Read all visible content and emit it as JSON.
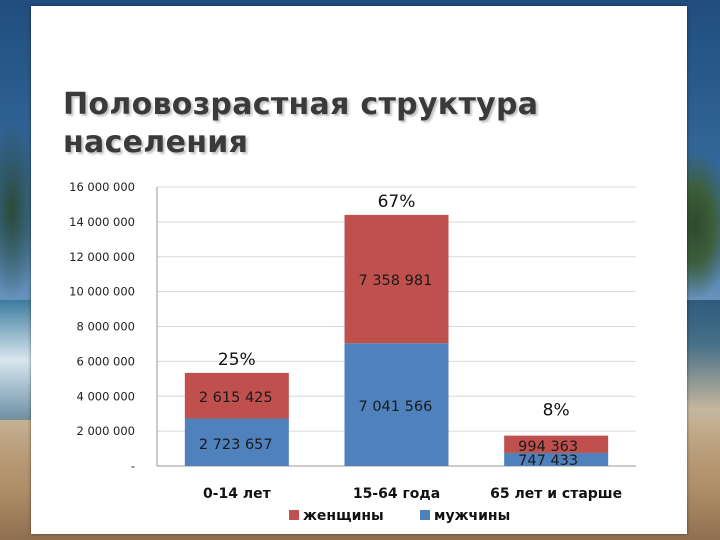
{
  "title": "Половозрастная структура населения",
  "chart_data": {
    "type": "bar",
    "stacked": true,
    "categories": [
      "0-14 лет",
      "15-64 года",
      "65 лет и старше"
    ],
    "series": [
      {
        "name": "мужчины",
        "values": [
          2723657,
          7041566,
          747433
        ],
        "labels": [
          "2 723 657",
          "7 041 566",
          "747 433"
        ],
        "color": "#4f81bd"
      },
      {
        "name": "женщины",
        "values": [
          2615425,
          7358981,
          994363
        ],
        "labels": [
          "2 615 425",
          "7 358 981",
          "994 363"
        ],
        "color": "#c0504d"
      }
    ],
    "percent_labels": [
      "25%",
      "67%",
      "8%"
    ],
    "ylim": [
      0,
      16000000
    ],
    "yticks": [
      {
        "value": 0,
        "label": "-"
      },
      {
        "value": 2000000,
        "label": "2 000 000"
      },
      {
        "value": 4000000,
        "label": "4 000 000"
      },
      {
        "value": 6000000,
        "label": "6 000 000"
      },
      {
        "value": 8000000,
        "label": "8 000 000"
      },
      {
        "value": 10000000,
        "label": "10 000 000"
      },
      {
        "value": 12000000,
        "label": "12 000 000"
      },
      {
        "value": 14000000,
        "label": "14 000 000"
      },
      {
        "value": 16000000,
        "label": "16 000 000"
      }
    ],
    "grid": true,
    "legend": {
      "position": "bottom",
      "order": [
        "женщины",
        "мужчины"
      ]
    }
  }
}
